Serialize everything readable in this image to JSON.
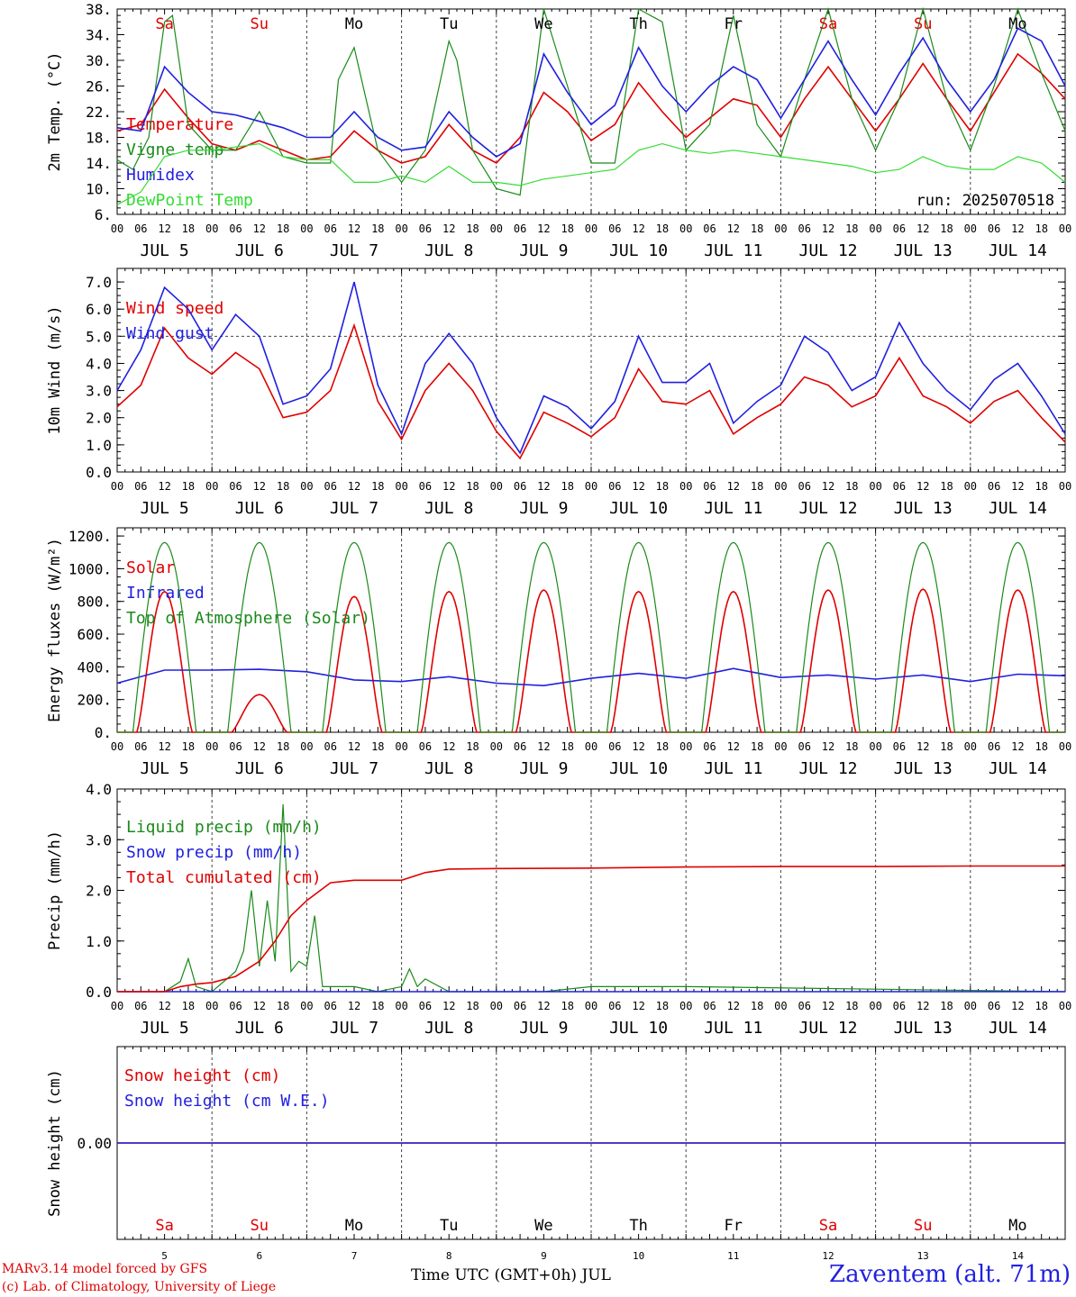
{
  "footer": {
    "model": "MARv3.14 model forced by GFS",
    "credit": "(c) Lab. of Climatology, University of Liege",
    "axis_title": "Time UTC (GMT+0h) JUL",
    "station": "Zaventem (alt. 71m)"
  },
  "colors": {
    "red": "#e00000",
    "blue": "#2020e0",
    "green": "#1a8a1a",
    "lightgreen": "#33dd33",
    "black": "#000000",
    "weekend": "#e00000"
  },
  "time_axis": {
    "hour_labels": [
      "00",
      "06",
      "12",
      "18"
    ],
    "date_labels": [
      "JUL  5",
      "JUL  6",
      "JUL  7",
      "JUL  8",
      "JUL  9",
      "JUL 10",
      "JUL 11",
      "JUL 12",
      "JUL 13",
      "JUL 14"
    ],
    "day_names": [
      "Sa",
      "Su",
      "Mo",
      "Tu",
      "We",
      "Th",
      "Fr",
      "Sa",
      "Su",
      "Mo"
    ],
    "day_numbers": [
      "5",
      "6",
      "7",
      "8",
      "9",
      "10",
      "11",
      "12",
      "13",
      "14"
    ],
    "weekend": [
      true,
      true,
      false,
      false,
      false,
      false,
      false,
      true,
      true,
      false
    ],
    "final_label": "00"
  },
  "chart_data": [
    {
      "type": "line",
      "ylabel": "2m Temp. (°C)",
      "ylim": [
        6,
        38
      ],
      "yticks": [
        "38.",
        "34.",
        "30.",
        "26.",
        "22.",
        "18.",
        "14.",
        "10.",
        "6."
      ],
      "annotation": "run: 2025070518",
      "x_unit": "hours since 2025-07-05 00 UTC",
      "series": [
        {
          "name": "Temperature",
          "color": "red",
          "x": [
            0,
            6,
            12,
            18,
            24,
            30,
            36,
            42,
            48,
            54,
            60,
            66,
            72,
            78,
            84,
            90,
            96,
            102,
            108,
            114,
            120,
            126,
            132,
            138,
            144,
            150,
            156,
            162,
            168,
            174,
            180,
            186,
            192,
            198,
            204,
            210,
            216,
            222,
            228,
            234,
            240
          ],
          "y": [
            19,
            20,
            25.5,
            21,
            17,
            16,
            17.5,
            16,
            14.5,
            15,
            19,
            16,
            14,
            15,
            20,
            16,
            14,
            18,
            25,
            22,
            17.5,
            20,
            26.5,
            22,
            18,
            21,
            24,
            23,
            18,
            24,
            29,
            24,
            19,
            24,
            29.5,
            24,
            19,
            25,
            31,
            28,
            24
          ]
        },
        {
          "name": "Vigne temp",
          "color": "green",
          "x": [
            0,
            4,
            8,
            12,
            14,
            18,
            24,
            30,
            36,
            42,
            48,
            54,
            56,
            60,
            66,
            72,
            78,
            84,
            86,
            90,
            96,
            102,
            108,
            114,
            120,
            126,
            132,
            138,
            144,
            150,
            156,
            162,
            168,
            174,
            180,
            186,
            192,
            198,
            204,
            210,
            216,
            222,
            228,
            234,
            240
          ],
          "y": [
            14.5,
            13,
            18,
            36,
            37,
            20,
            16,
            16,
            22,
            15,
            14,
            14,
            27,
            32,
            16,
            11,
            16,
            33,
            30,
            16,
            10,
            9,
            38,
            26,
            14,
            14,
            38,
            36,
            16,
            20,
            37,
            20,
            15,
            27,
            38,
            24,
            16,
            24,
            38,
            24,
            16,
            26,
            38,
            28,
            19
          ]
        },
        {
          "name": "Humidex",
          "color": "blue",
          "x": [
            0,
            6,
            12,
            18,
            24,
            30,
            36,
            42,
            48,
            54,
            60,
            66,
            72,
            78,
            84,
            90,
            96,
            102,
            108,
            114,
            120,
            126,
            132,
            138,
            144,
            150,
            156,
            162,
            168,
            174,
            180,
            186,
            192,
            198,
            204,
            210,
            216,
            222,
            228,
            234,
            240
          ],
          "y": [
            19.5,
            19,
            29,
            25,
            22,
            21.5,
            20.5,
            19.5,
            18,
            18,
            22,
            18,
            16,
            16.5,
            22,
            18,
            15,
            17,
            31,
            25,
            20,
            23,
            32,
            26,
            22,
            26,
            29,
            27,
            21,
            27,
            33,
            27,
            21.5,
            28,
            33.5,
            27,
            22,
            27,
            35,
            33,
            26
          ]
        },
        {
          "name": "DewPoint Temp",
          "color": "lightgreen",
          "x": [
            0,
            6,
            12,
            18,
            24,
            30,
            36,
            42,
            48,
            54,
            60,
            66,
            72,
            78,
            84,
            90,
            96,
            102,
            108,
            114,
            120,
            126,
            132,
            138,
            144,
            150,
            156,
            162,
            168,
            174,
            180,
            186,
            192,
            198,
            204,
            210,
            216,
            222,
            228,
            234,
            240
          ],
          "y": [
            7.5,
            9.5,
            15,
            16,
            16,
            16.5,
            17,
            15,
            14.5,
            14.5,
            11,
            11,
            12,
            11,
            13.5,
            11,
            11,
            10.5,
            11.5,
            12,
            12.5,
            13,
            16,
            17,
            16,
            15.5,
            16,
            15.5,
            15,
            14.5,
            14,
            13.5,
            12.5,
            13,
            15,
            13.5,
            13,
            13,
            15,
            14,
            11
          ]
        }
      ]
    },
    {
      "type": "line",
      "ylabel": "10m Wind (m/s)",
      "ylim": [
        0,
        7.5
      ],
      "yticks": [
        "7.0",
        "6.0",
        "5.0",
        "4.0",
        "3.0",
        "2.0",
        "1.0",
        "0.0"
      ],
      "ref_line": 5,
      "series": [
        {
          "name": "Wind speed",
          "color": "red",
          "x": [
            0,
            6,
            12,
            18,
            24,
            30,
            36,
            42,
            48,
            54,
            60,
            66,
            72,
            78,
            84,
            90,
            96,
            102,
            108,
            114,
            120,
            126,
            132,
            138,
            144,
            150,
            156,
            162,
            168,
            174,
            180,
            186,
            192,
            198,
            204,
            210,
            216,
            222,
            228,
            234,
            240
          ],
          "y": [
            2.4,
            3.2,
            5.3,
            4.2,
            3.6,
            4.4,
            3.8,
            2.0,
            2.2,
            3.0,
            5.4,
            2.6,
            1.2,
            3.0,
            4.0,
            3.0,
            1.5,
            0.5,
            2.2,
            1.8,
            1.3,
            2.0,
            3.8,
            2.6,
            2.5,
            3.0,
            1.4,
            2.0,
            2.5,
            3.5,
            3.2,
            2.4,
            2.8,
            4.2,
            2.8,
            2.4,
            1.8,
            2.6,
            3.0,
            2.0,
            1.1
          ]
        },
        {
          "name": "Wind gust",
          "color": "blue",
          "x": [
            0,
            6,
            12,
            18,
            24,
            30,
            36,
            42,
            48,
            54,
            60,
            66,
            72,
            78,
            84,
            90,
            96,
            102,
            108,
            114,
            120,
            126,
            132,
            138,
            144,
            150,
            156,
            162,
            168,
            174,
            180,
            186,
            192,
            198,
            204,
            210,
            216,
            222,
            228,
            234,
            240
          ],
          "y": [
            3.0,
            4.5,
            6.8,
            6.0,
            4.5,
            5.8,
            5.0,
            2.5,
            2.8,
            3.8,
            7.0,
            3.2,
            1.4,
            4.0,
            5.1,
            4.0,
            2.0,
            0.7,
            2.8,
            2.4,
            1.6,
            2.6,
            5.0,
            3.3,
            3.3,
            4.0,
            1.8,
            2.6,
            3.2,
            5.0,
            4.4,
            3.0,
            3.5,
            5.5,
            4.0,
            3.0,
            2.3,
            3.4,
            4.0,
            2.8,
            1.4
          ]
        }
      ]
    },
    {
      "type": "line",
      "ylabel": "Energy fluxes (W/m²)",
      "ylim": [
        0,
        1250
      ],
      "yticks": [
        "1200.",
        "1000.",
        "800.",
        "600.",
        "400.",
        "200.",
        "0."
      ],
      "series": [
        {
          "name": "Solar",
          "color": "red",
          "peaks": [
            860,
            230,
            830,
            860,
            870,
            860,
            860,
            870,
            875,
            870
          ],
          "shape": "irregular"
        },
        {
          "name": "Infrared",
          "color": "blue",
          "x": [
            0,
            12,
            24,
            36,
            48,
            60,
            72,
            84,
            96,
            108,
            120,
            132,
            144,
            156,
            168,
            180,
            192,
            204,
            216,
            228,
            240
          ],
          "y": [
            300,
            380,
            380,
            385,
            370,
            320,
            310,
            340,
            300,
            285,
            330,
            360,
            330,
            390,
            335,
            350,
            325,
            350,
            310,
            355,
            345
          ]
        },
        {
          "name": "Top of Atmosphere (Solar)",
          "color": "green",
          "peak": 1160,
          "sunrise_h": 4,
          "sunset_h": 20
        }
      ]
    },
    {
      "type": "line",
      "ylabel": "Precip (mm/h)",
      "ylim": [
        0,
        4
      ],
      "yticks": [
        "4.0",
        "3.0",
        "2.0",
        "1.0",
        "0.0"
      ],
      "series": [
        {
          "name": "Liquid precip (mm/h)",
          "color": "green",
          "x": [
            0,
            12,
            16,
            18,
            20,
            24,
            30,
            32,
            34,
            36,
            38,
            40,
            42,
            44,
            46,
            48,
            50,
            52,
            54,
            56,
            60,
            66,
            72,
            74,
            76,
            78,
            84,
            90,
            96,
            108,
            120,
            144,
            240
          ],
          "y": [
            0,
            0,
            0.2,
            0.65,
            0.1,
            0,
            0.4,
            0.8,
            2.0,
            0.5,
            1.8,
            0.6,
            3.7,
            0.4,
            0.6,
            0.5,
            1.5,
            0.1,
            0.1,
            0.1,
            0.1,
            0,
            0.1,
            0.45,
            0.1,
            0.25,
            0,
            0,
            0,
            0,
            0.1,
            0.1,
            0
          ]
        },
        {
          "name": "Snow precip (mm/h)",
          "color": "blue",
          "x": [
            0,
            240
          ],
          "y": [
            0,
            0
          ]
        },
        {
          "name": "Total cumulated (cm)",
          "color": "red",
          "x": [
            0,
            12,
            16,
            20,
            24,
            30,
            36,
            40,
            44,
            48,
            54,
            60,
            72,
            78,
            84,
            96,
            120,
            144,
            168,
            192,
            216,
            240
          ],
          "y": [
            0,
            0,
            0.1,
            0.15,
            0.18,
            0.3,
            0.6,
            1.0,
            1.5,
            1.8,
            2.15,
            2.2,
            2.2,
            2.35,
            2.42,
            2.43,
            2.44,
            2.46,
            2.47,
            2.47,
            2.48,
            2.48
          ]
        }
      ]
    },
    {
      "type": "line",
      "ylabel": "Snow height (cm)",
      "ylim": [
        -1,
        1
      ],
      "yticks": [
        "0.00"
      ],
      "series": [
        {
          "name": "Snow height (cm)",
          "color": "red",
          "x": [
            0,
            240
          ],
          "y": [
            0,
            0
          ]
        },
        {
          "name": "Snow height (cm W.E.)",
          "color": "blue",
          "x": [
            0,
            240
          ],
          "y": [
            0,
            0
          ]
        }
      ]
    }
  ]
}
